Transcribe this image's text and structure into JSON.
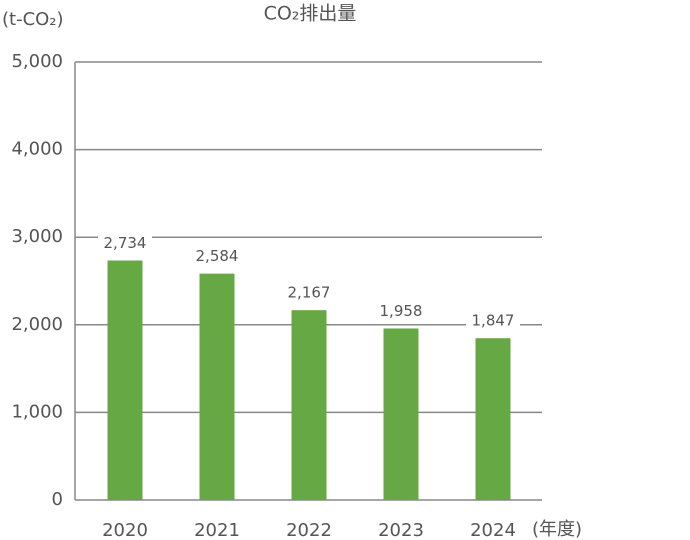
{
  "chart_data": {
    "type": "bar",
    "title": "CO₂排出量",
    "y_label": "(t-CO₂)",
    "x_label": "(年度)",
    "categories": [
      "2020",
      "2021",
      "2022",
      "2023",
      "2024"
    ],
    "values": [
      2734,
      2584,
      2167,
      1958,
      1847
    ],
    "value_labels": [
      "2,734",
      "2,584",
      "2,167",
      "1,958",
      "1,847"
    ],
    "color": "#66a843",
    "ylim": [
      0,
      5000
    ],
    "yticks": [
      0,
      {
        "value": 1000,
        "label": "1,000"
      },
      {
        "value": 2000,
        "label": "2,000"
      },
      {
        "value": 3000,
        "label": "3,000"
      },
      {
        "value": 4000,
        "label": "4,000"
      },
      {
        "value": 5000,
        "label": "5,000"
      }
    ],
    "grid": true
  }
}
